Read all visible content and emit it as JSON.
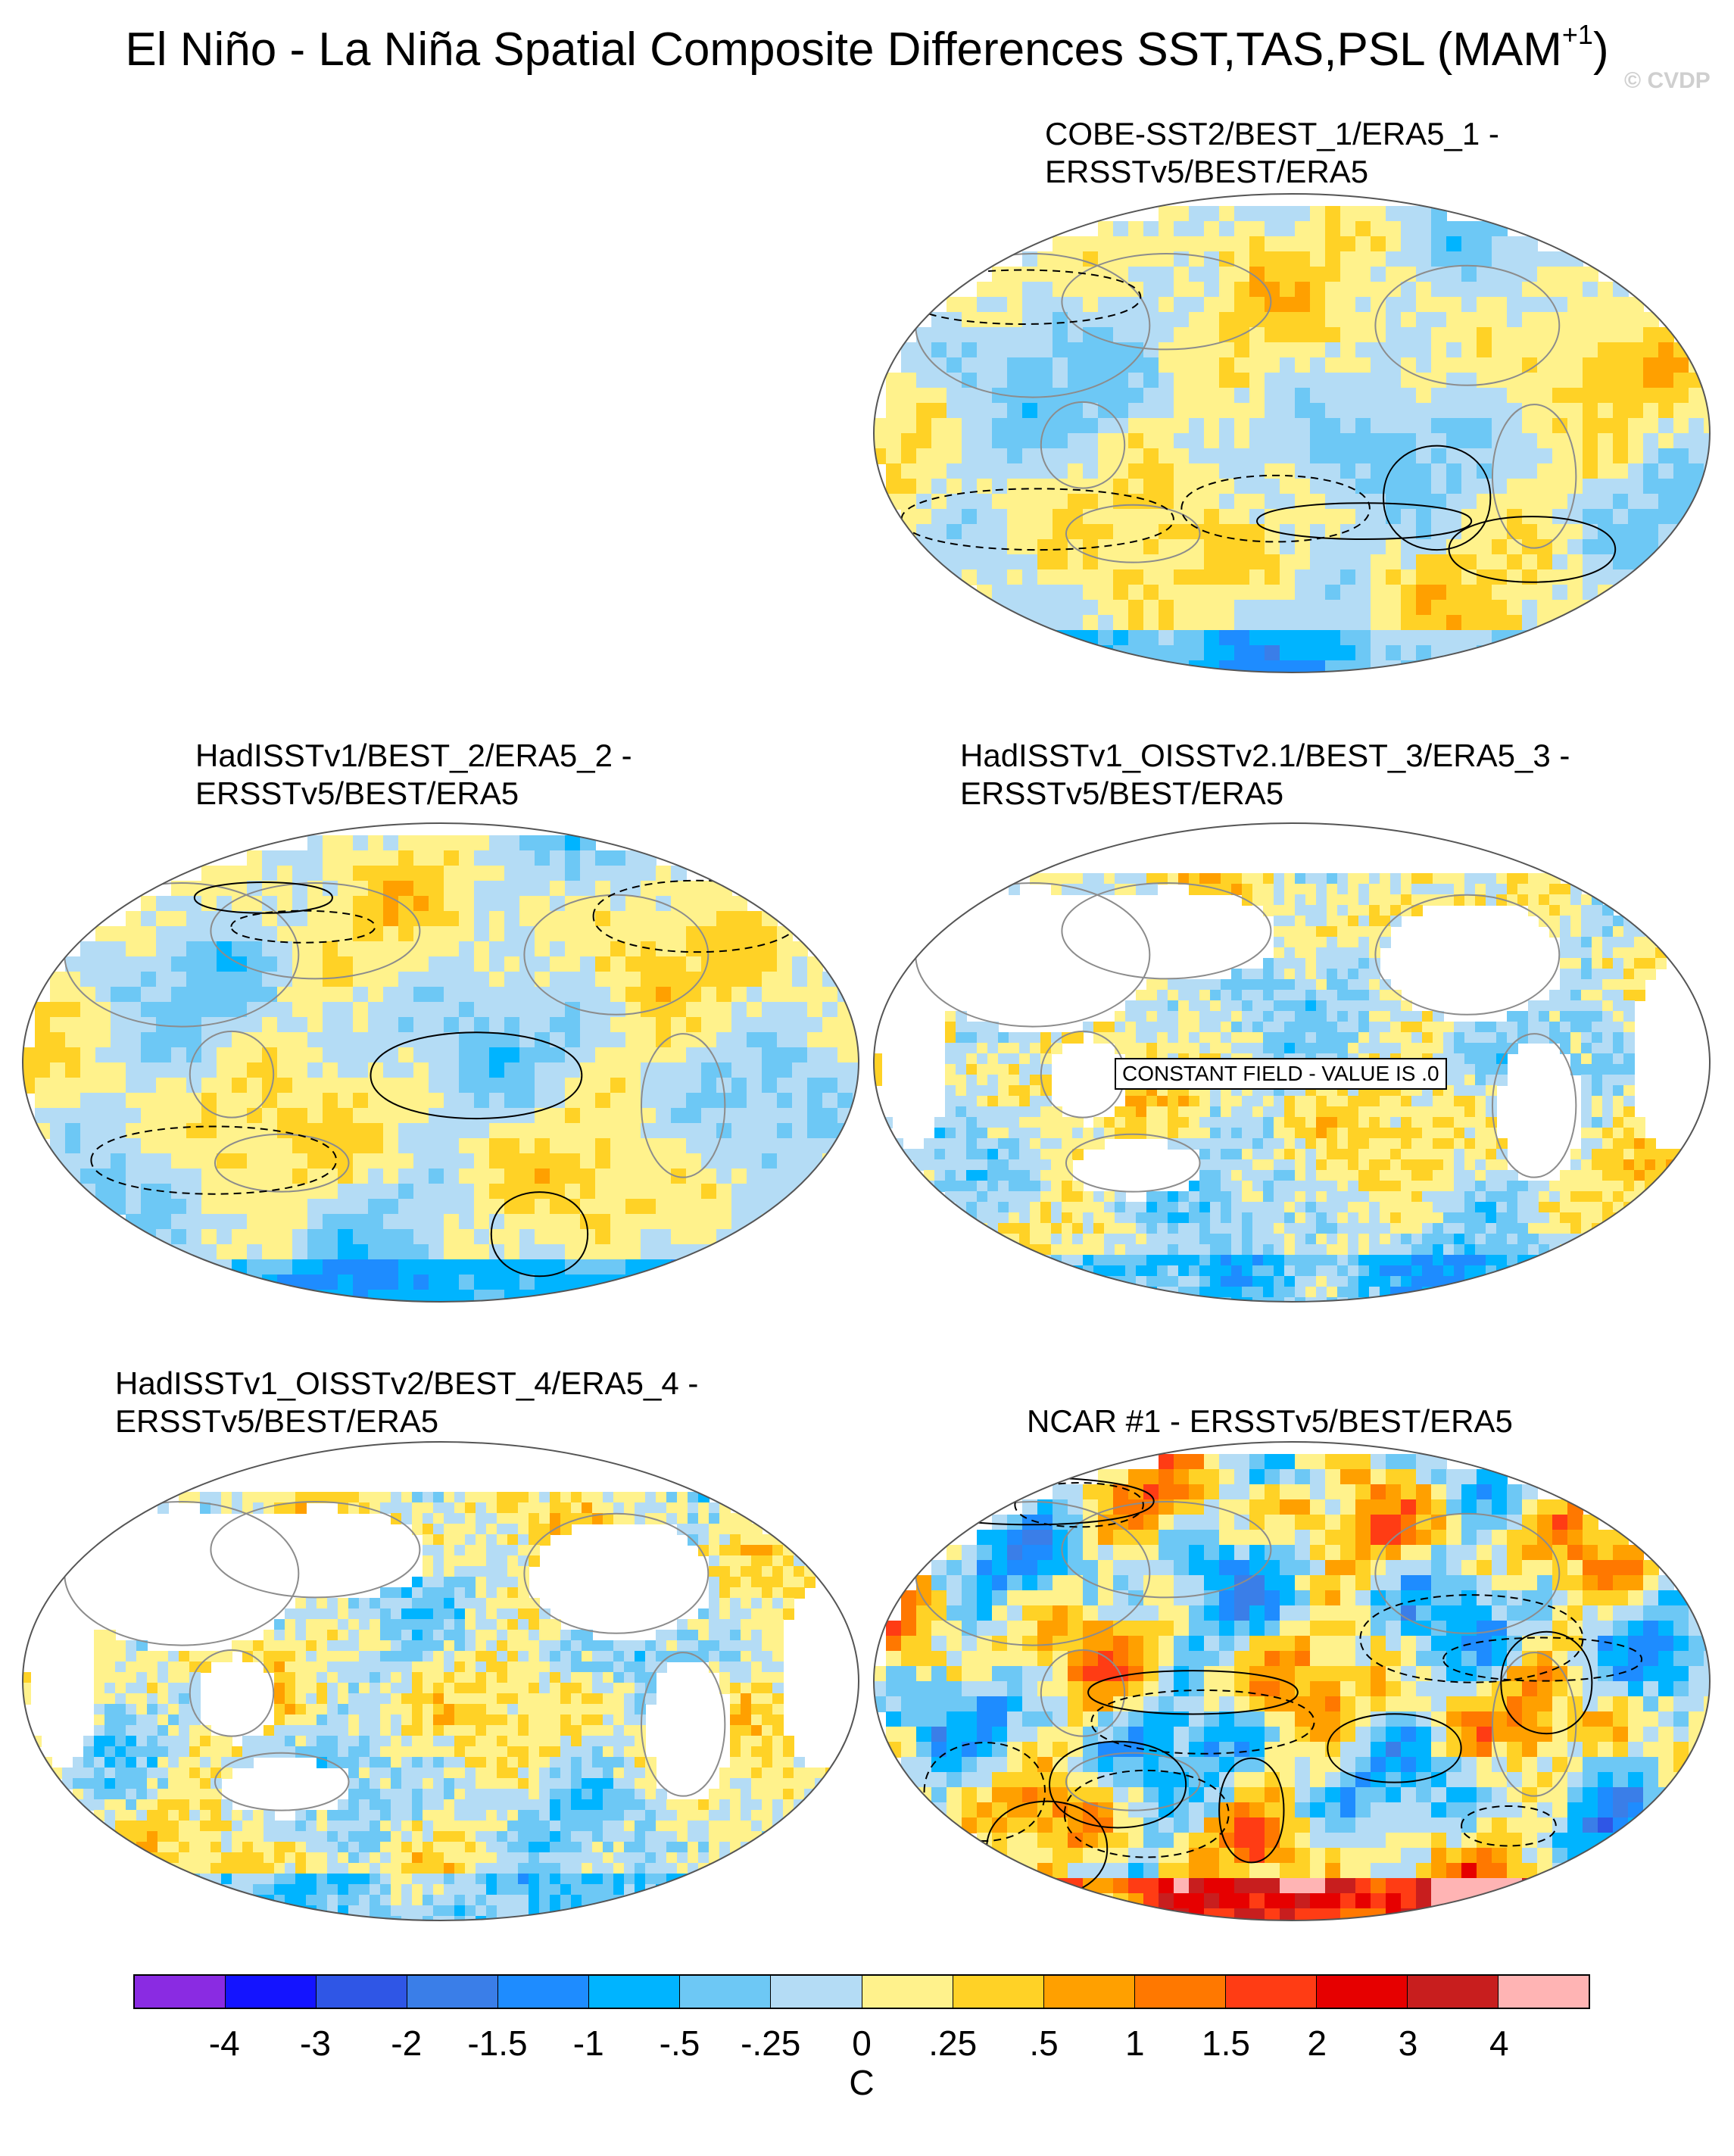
{
  "title": "El Niño - La Niña Spatial Composite Differences SST,TAS,PSL (MAM",
  "title_superscript": "+1",
  "title_suffix": ")",
  "watermark": "© CVDP",
  "panels": [
    {
      "id": "p1",
      "title_line1": "COBE-SST2/BEST_1/ERA5_1 -",
      "title_line2": "ERSSTv5/BEST/ERA5",
      "style": "mixed",
      "constant_field": false
    },
    {
      "id": "p2",
      "title_line1": "HadISSTv1/BEST_2/ERA5_2 -",
      "title_line2": "ERSSTv5/BEST/ERA5",
      "style": "mixed",
      "constant_field": false
    },
    {
      "id": "p3",
      "title_line1": "HadISSTv1_OISSTv2.1/BEST_3/ERA5_3 -",
      "title_line2": "ERSSTv5/BEST/ERA5",
      "style": "ocean-noise",
      "constant_field": true,
      "constant_label": "CONSTANT FIELD - VALUE IS .0"
    },
    {
      "id": "p4",
      "title_line1": "HadISSTv1_OISSTv2/BEST_4/ERA5_4 -",
      "title_line2": "ERSSTv5/BEST/ERA5",
      "style": "ocean-noise",
      "constant_field": false
    },
    {
      "id": "p5",
      "title_line1": "NCAR #1 - ERSSTv5/BEST/ERA5",
      "title_line2": "",
      "style": "strong",
      "constant_field": false
    }
  ],
  "colorbar": {
    "colors": [
      "#8a2be2",
      "#1414ff",
      "#2f56e6",
      "#3a7ee8",
      "#1e8cff",
      "#00b4ff",
      "#6dc8f5",
      "#b4dcf5",
      "#fff28c",
      "#ffd226",
      "#ffa000",
      "#ff7800",
      "#ff3c14",
      "#e60000",
      "#c81e1e",
      "#ffb4b4"
    ],
    "labels": [
      "-4",
      "-3",
      "-2",
      "-1.5",
      "-1",
      "-.5",
      "-.25",
      "0",
      ".25",
      ".5",
      "1",
      "1.5",
      "2",
      "3",
      "4"
    ],
    "units": "C"
  }
}
